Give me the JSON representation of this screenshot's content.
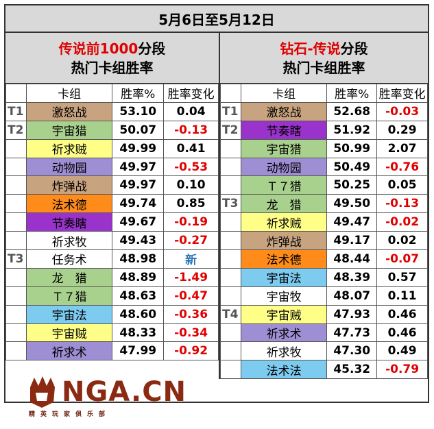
{
  "title": "5月6日至5月12日",
  "left": {
    "head_red": "传说前1000",
    "head_black": "分段",
    "head_line2": "热门卡组胜率",
    "columns": [
      "卡组",
      "胜率%",
      "胜率变化"
    ],
    "rows": [
      {
        "tier": "T1",
        "deck": "激怒战",
        "wr": "53.10",
        "ch": "0.04",
        "color": "#c8a37f",
        "kind": "pos"
      },
      {
        "tier": "T2",
        "deck": "宇宙猎",
        "wr": "50.07",
        "ch": "-0.13",
        "color": "#a9d18e",
        "kind": "neg"
      },
      {
        "tier": "",
        "deck": "祈求贼",
        "wr": "49.99",
        "ch": "0.41",
        "color": "#ffff88",
        "kind": "pos"
      },
      {
        "tier": "",
        "deck": "动物园",
        "wr": "49.97",
        "ch": "-0.53",
        "color": "#9e8ed4",
        "kind": "neg"
      },
      {
        "tier": "",
        "deck": "炸弹战",
        "wr": "49.97",
        "ch": "0.10",
        "color": "#c8a37f",
        "kind": "pos"
      },
      {
        "tier": "",
        "deck": "法术德",
        "wr": "49.74",
        "ch": "0.85",
        "color": "#ff8c1a",
        "kind": "pos"
      },
      {
        "tier": "",
        "deck": "节奏瞎",
        "wr": "49.67",
        "ch": "-0.19",
        "color": "#9933cc",
        "kind": "neg"
      },
      {
        "tier": "",
        "deck": "祈求牧",
        "wr": "49.43",
        "ch": "-0.27",
        "color": "#ffffff",
        "kind": "neg"
      },
      {
        "tier": "T3",
        "deck": "任务术",
        "wr": "48.98",
        "ch": "新",
        "color": "#ffffff",
        "kind": "new"
      },
      {
        "tier": "",
        "deck": "龙　猎",
        "wr": "48.89",
        "ch": "-1.49",
        "color": "#a9d18e",
        "kind": "neg"
      },
      {
        "tier": "",
        "deck": "Ｔ７猎",
        "wr": "48.63",
        "ch": "-0.47",
        "color": "#a9d18e",
        "kind": "neg"
      },
      {
        "tier": "",
        "deck": "宇宙法",
        "wr": "48.60",
        "ch": "-0.36",
        "color": "#7ecbf0",
        "kind": "neg"
      },
      {
        "tier": "",
        "deck": "宇宙贼",
        "wr": "48.33",
        "ch": "-0.34",
        "color": "#ffff88",
        "kind": "neg"
      },
      {
        "tier": "",
        "deck": "祈求术",
        "wr": "47.99",
        "ch": "-0.92",
        "color": "#9e8ed4",
        "kind": "neg"
      }
    ]
  },
  "right": {
    "head_red": "钻石-传说",
    "head_black": "分段",
    "head_line2": "热门卡组胜率",
    "columns": [
      "卡组",
      "胜率%",
      "胜率变化"
    ],
    "rows": [
      {
        "tier": "T1",
        "deck": "激怒战",
        "wr": "52.68",
        "ch": "-0.03",
        "color": "#c8a37f",
        "kind": "neg"
      },
      {
        "tier": "T2",
        "deck": "节奏瞎",
        "wr": "51.92",
        "ch": "0.29",
        "color": "#9933cc",
        "kind": "pos"
      },
      {
        "tier": "",
        "deck": "宇宙猎",
        "wr": "50.99",
        "ch": "2.07",
        "color": "#a9d18e",
        "kind": "pos"
      },
      {
        "tier": "",
        "deck": "动物园",
        "wr": "50.49",
        "ch": "-0.76",
        "color": "#9e8ed4",
        "kind": "neg"
      },
      {
        "tier": "",
        "deck": "Ｔ７猎",
        "wr": "50.25",
        "ch": "0.05",
        "color": "#a9d18e",
        "kind": "pos"
      },
      {
        "tier": "T3",
        "deck": "龙　猎",
        "wr": "49.50",
        "ch": "-0.13",
        "color": "#a9d18e",
        "kind": "neg"
      },
      {
        "tier": "",
        "deck": "祈求贼",
        "wr": "49.47",
        "ch": "-0.02",
        "color": "#ffff88",
        "kind": "neg"
      },
      {
        "tier": "",
        "deck": "炸弹战",
        "wr": "49.17",
        "ch": "0.02",
        "color": "#c8a37f",
        "kind": "pos"
      },
      {
        "tier": "",
        "deck": "法术德",
        "wr": "48.44",
        "ch": "-0.07",
        "color": "#ff8c1a",
        "kind": "neg"
      },
      {
        "tier": "",
        "deck": "宇宙法",
        "wr": "48.39",
        "ch": "0.57",
        "color": "#7ecbf0",
        "kind": "pos"
      },
      {
        "tier": "",
        "deck": "宇宙牧",
        "wr": "48.07",
        "ch": "0.11",
        "color": "#ffffff",
        "kind": "pos"
      },
      {
        "tier": "T4",
        "deck": "宇宙贼",
        "wr": "47.93",
        "ch": "0.46",
        "color": "#ffff88",
        "kind": "pos"
      },
      {
        "tier": "",
        "deck": "祈求术",
        "wr": "47.73",
        "ch": "0.46",
        "color": "#9e8ed4",
        "kind": "pos"
      },
      {
        "tier": "",
        "deck": "祈求牧",
        "wr": "47.30",
        "ch": "0.49",
        "color": "#ffffff",
        "kind": "pos"
      },
      {
        "tier": "",
        "deck": "法术法",
        "wr": "45.32",
        "ch": "-0.79",
        "color": "#7ecbf0",
        "kind": "neg"
      }
    ]
  },
  "logo": {
    "text": "NGA.CN",
    "sub": "精英玩家俱乐部",
    "icon": "bear-paw-icon"
  }
}
